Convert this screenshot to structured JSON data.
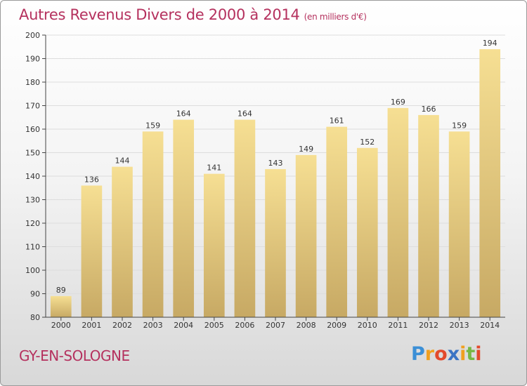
{
  "header": {
    "title": "Autres Revenus Divers de 2000 à 2014",
    "unit": "(en milliers d'€)"
  },
  "footer": {
    "place": "GY-EN-SOLOGNE",
    "logo": {
      "letters": [
        "P",
        "r",
        "o",
        "x",
        "i",
        "t",
        "i"
      ],
      "colors": [
        "#3b8fd6",
        "#f0a020",
        "#e34a2c",
        "#3a73c4",
        "#f0a020",
        "#77b843",
        "#e34a2c"
      ]
    }
  },
  "colors": {
    "title": "#b5315e",
    "bar_top": "#f6df93",
    "bar_bottom": "#c7a964",
    "grid": "#dddddd"
  },
  "chart_data": {
    "type": "bar",
    "title": "Autres Revenus Divers de 2000 à 2014",
    "categories": [
      "2000",
      "2001",
      "2002",
      "2003",
      "2004",
      "2005",
      "2006",
      "2007",
      "2008",
      "2009",
      "2010",
      "2011",
      "2012",
      "2013",
      "2014"
    ],
    "values": [
      89,
      136,
      144,
      159,
      164,
      141,
      164,
      143,
      149,
      161,
      152,
      169,
      166,
      159,
      194
    ],
    "ylim": [
      80,
      200
    ],
    "yticks": [
      80,
      90,
      100,
      110,
      120,
      130,
      140,
      150,
      160,
      170,
      180,
      190,
      200
    ],
    "grid": true,
    "xlabel": "",
    "ylabel": ""
  }
}
